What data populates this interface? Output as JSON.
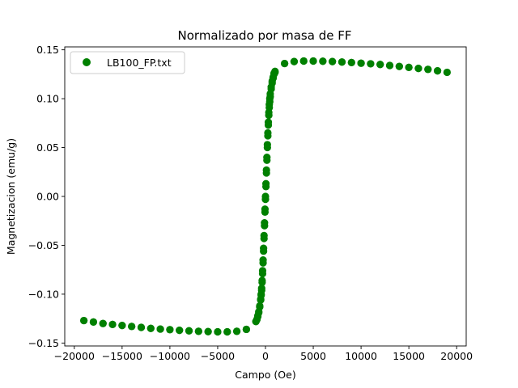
{
  "chart_data": {
    "type": "scatter",
    "title": "Normalizado por masa de FF",
    "xlabel": "Campo (Oe)",
    "ylabel": "Magnetizacion (emu/g)",
    "xlim": [
      -21000,
      21000
    ],
    "ylim": [
      -0.153,
      0.153
    ],
    "xticks": [
      -20000,
      -15000,
      -10000,
      -5000,
      0,
      5000,
      10000,
      15000,
      20000
    ],
    "yticks": [
      -0.15,
      -0.1,
      -0.05,
      0.0,
      0.05,
      0.1,
      0.15
    ],
    "xtick_labels": [
      "−20000",
      "−15000",
      "−10000",
      "−5000",
      "0",
      "5000",
      "10000",
      "15000",
      "20000"
    ],
    "ytick_labels": [
      "−0.15",
      "−0.10",
      "−0.05",
      "0.00",
      "0.05",
      "0.10",
      "0.15"
    ],
    "grid": false,
    "legend_position": "top-left",
    "series": [
      {
        "name": "LB100_FP.txt",
        "color": "#008000",
        "marker": "circle",
        "x": [
          -19000,
          -18000,
          -17000,
          -16000,
          -15000,
          -14000,
          -13000,
          -12000,
          -11000,
          -10000,
          -9000,
          -8000,
          -7000,
          -6000,
          -5000,
          -4000,
          -3000,
          -2000,
          -1000,
          -900,
          -800,
          -700,
          -600,
          -500,
          -450,
          -400,
          -350,
          -300,
          -250,
          -200,
          -150,
          -100,
          -50,
          0,
          50,
          100,
          150,
          200,
          250,
          300,
          350,
          400,
          450,
          500,
          600,
          700,
          800,
          900,
          1000,
          2000,
          3000,
          4000,
          5000,
          6000,
          7000,
          8000,
          9000,
          10000,
          11000,
          12000,
          13000,
          14000,
          15000,
          16000,
          17000,
          18000,
          19000,
          18000,
          17000,
          16000,
          15000,
          14000,
          13000,
          12000,
          11000,
          10000,
          9000,
          8000,
          7000,
          6000,
          5000,
          4000,
          3000,
          2000,
          1000,
          900,
          800,
          700,
          600,
          500,
          450,
          400,
          350,
          300,
          250,
          200,
          150,
          100,
          50,
          0,
          -50,
          -100,
          -150,
          -200,
          -250,
          -300,
          -350,
          -400,
          -450,
          -500,
          -600,
          -700,
          -800,
          -900,
          -1000,
          -2000,
          -3000,
          -4000,
          -5000,
          -6000,
          -7000,
          -8000,
          -9000,
          -10000,
          -11000,
          -12000,
          -13000,
          -14000,
          -15000,
          -16000,
          -17000,
          -18000,
          -19000
        ],
        "y": [
          -0.127,
          -0.1285,
          -0.13,
          -0.131,
          -0.132,
          -0.133,
          -0.134,
          -0.135,
          -0.1357,
          -0.1363,
          -0.137,
          -0.1375,
          -0.138,
          -0.1383,
          -0.1385,
          -0.1385,
          -0.138,
          -0.136,
          -0.128,
          -0.126,
          -0.122,
          -0.118,
          -0.112,
          -0.105,
          -0.1,
          -0.094,
          -0.086,
          -0.076,
          -0.065,
          -0.053,
          -0.04,
          -0.027,
          -0.013,
          0.0,
          0.013,
          0.027,
          0.04,
          0.053,
          0.065,
          0.076,
          0.086,
          0.094,
          0.1,
          0.105,
          0.112,
          0.118,
          0.122,
          0.126,
          0.128,
          0.136,
          0.138,
          0.1385,
          0.1385,
          0.1383,
          0.138,
          0.1375,
          0.137,
          0.1363,
          0.1357,
          0.135,
          0.134,
          0.133,
          0.132,
          0.131,
          0.13,
          0.1285,
          0.127,
          0.1285,
          0.13,
          0.131,
          0.132,
          0.133,
          0.134,
          0.135,
          0.1357,
          0.1363,
          0.137,
          0.1375,
          0.138,
          0.1383,
          0.1385,
          0.1385,
          0.138,
          0.136,
          0.127,
          0.125,
          0.121,
          0.116,
          0.11,
          0.102,
          0.097,
          0.091,
          0.083,
          0.073,
          0.062,
          0.05,
          0.037,
          0.024,
          0.01,
          -0.003,
          -0.016,
          -0.03,
          -0.043,
          -0.056,
          -0.068,
          -0.079,
          -0.088,
          -0.096,
          -0.101,
          -0.106,
          -0.113,
          -0.119,
          -0.123,
          -0.126,
          -0.128,
          -0.136,
          -0.138,
          -0.1385,
          -0.1385,
          -0.1383,
          -0.138,
          -0.1375,
          -0.137,
          -0.1363,
          -0.1357,
          -0.135,
          -0.134,
          -0.133,
          -0.132,
          -0.131,
          -0.13,
          -0.1285,
          -0.127
        ]
      }
    ]
  }
}
